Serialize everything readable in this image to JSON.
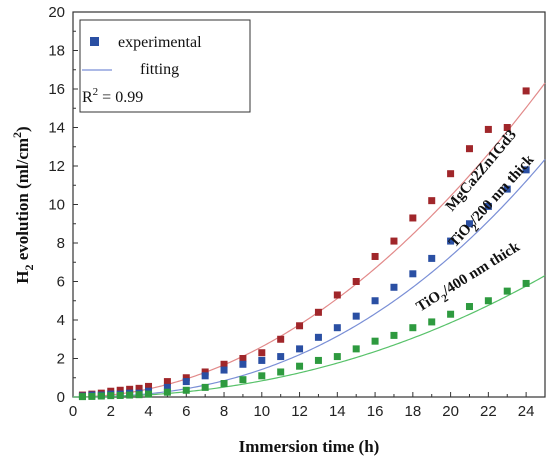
{
  "chart_data": {
    "type": "scatter",
    "xlabel": "Immersion time (h)",
    "ylabel_main": "H",
    "ylabel_sub": "2",
    "ylabel_rest": " evolution (ml/cm",
    "ylabel_sup": "2",
    "ylabel_end": ")",
    "xlim": [
      0,
      25
    ],
    "ylim": [
      0,
      20
    ],
    "xticks": [
      0,
      2,
      4,
      6,
      8,
      10,
      12,
      14,
      16,
      18,
      20,
      22,
      24
    ],
    "yticks": [
      0,
      2,
      4,
      6,
      8,
      10,
      12,
      14,
      16,
      18,
      20
    ],
    "legend": {
      "position": "top-left",
      "experimental_label": "experimental",
      "fitting_label": "fitting",
      "r2_label": "R",
      "r2_sup": "2",
      "r2_value": " = 0.99"
    },
    "colors": {
      "red": "#a0262a",
      "blue": "#2a4fa3",
      "green": "#2e9a3f",
      "red_fit": "#e28a8a",
      "blue_fit": "#7a8fd6",
      "green_fit": "#58c26a"
    },
    "series": [
      {
        "name": "MgCa2Zn1Gd3",
        "label_main": "MgCa2Zn1Gd3",
        "label_sub": "",
        "label_rest": "",
        "color_key": "red",
        "fit_color_key": "red_fit",
        "x": [
          0.5,
          1,
          1.5,
          2,
          2.5,
          3,
          3.5,
          4,
          5,
          6,
          7,
          8,
          9,
          10,
          11,
          12,
          13,
          14,
          15,
          16,
          17,
          18,
          19,
          20,
          21,
          22,
          23,
          24
        ],
        "y": [
          0.1,
          0.15,
          0.2,
          0.3,
          0.35,
          0.4,
          0.45,
          0.55,
          0.8,
          1.0,
          1.3,
          1.7,
          2.0,
          2.3,
          3.0,
          3.7,
          4.4,
          5.3,
          6.0,
          7.3,
          8.1,
          9.3,
          10.2,
          11.6,
          12.9,
          13.9,
          14.0,
          15.9
        ],
        "fit": {
          "a": 0.0261,
          "p": 2.0,
          "c": 0.0
        }
      },
      {
        "name": "TiO2/200 nm thick",
        "label_main": "TiO",
        "label_sub": "2",
        "label_rest": "/200 nm thick",
        "color_key": "blue",
        "fit_color_key": "blue_fit",
        "x": [
          0.5,
          1,
          1.5,
          2,
          2.5,
          3,
          3.5,
          4,
          5,
          6,
          7,
          8,
          9,
          10,
          11,
          12,
          13,
          14,
          15,
          16,
          17,
          18,
          19,
          20,
          21,
          22,
          23,
          24
        ],
        "y": [
          0.05,
          0.1,
          0.1,
          0.15,
          0.15,
          0.2,
          0.2,
          0.3,
          0.5,
          0.8,
          1.1,
          1.4,
          1.7,
          1.9,
          2.1,
          2.5,
          3.1,
          3.6,
          4.2,
          5.0,
          5.7,
          6.4,
          7.2,
          8.1,
          9.0,
          9.9,
          10.8,
          11.8
        ],
        "fit": {
          "a": 0.0064,
          "p": 2.35,
          "c": 0.0
        }
      },
      {
        "name": "TiO2/400 nm thick",
        "label_main": "TiO",
        "label_sub": "2",
        "label_rest": "/400 nm thick",
        "color_key": "green",
        "fit_color_key": "green_fit",
        "x": [
          0.5,
          1,
          1.5,
          2,
          2.5,
          3,
          3.5,
          4,
          5,
          6,
          7,
          8,
          9,
          10,
          11,
          12,
          13,
          14,
          15,
          16,
          17,
          18,
          19,
          20,
          21,
          22,
          23,
          24
        ],
        "y": [
          0.02,
          0.03,
          0.05,
          0.07,
          0.08,
          0.1,
          0.12,
          0.15,
          0.25,
          0.35,
          0.5,
          0.7,
          0.9,
          1.1,
          1.3,
          1.6,
          1.9,
          2.1,
          2.5,
          2.9,
          3.2,
          3.6,
          3.9,
          4.3,
          4.7,
          5.0,
          5.5,
          5.9
        ],
        "fit": {
          "a": 0.0053,
          "p": 2.2,
          "c": 0.0
        }
      }
    ]
  }
}
